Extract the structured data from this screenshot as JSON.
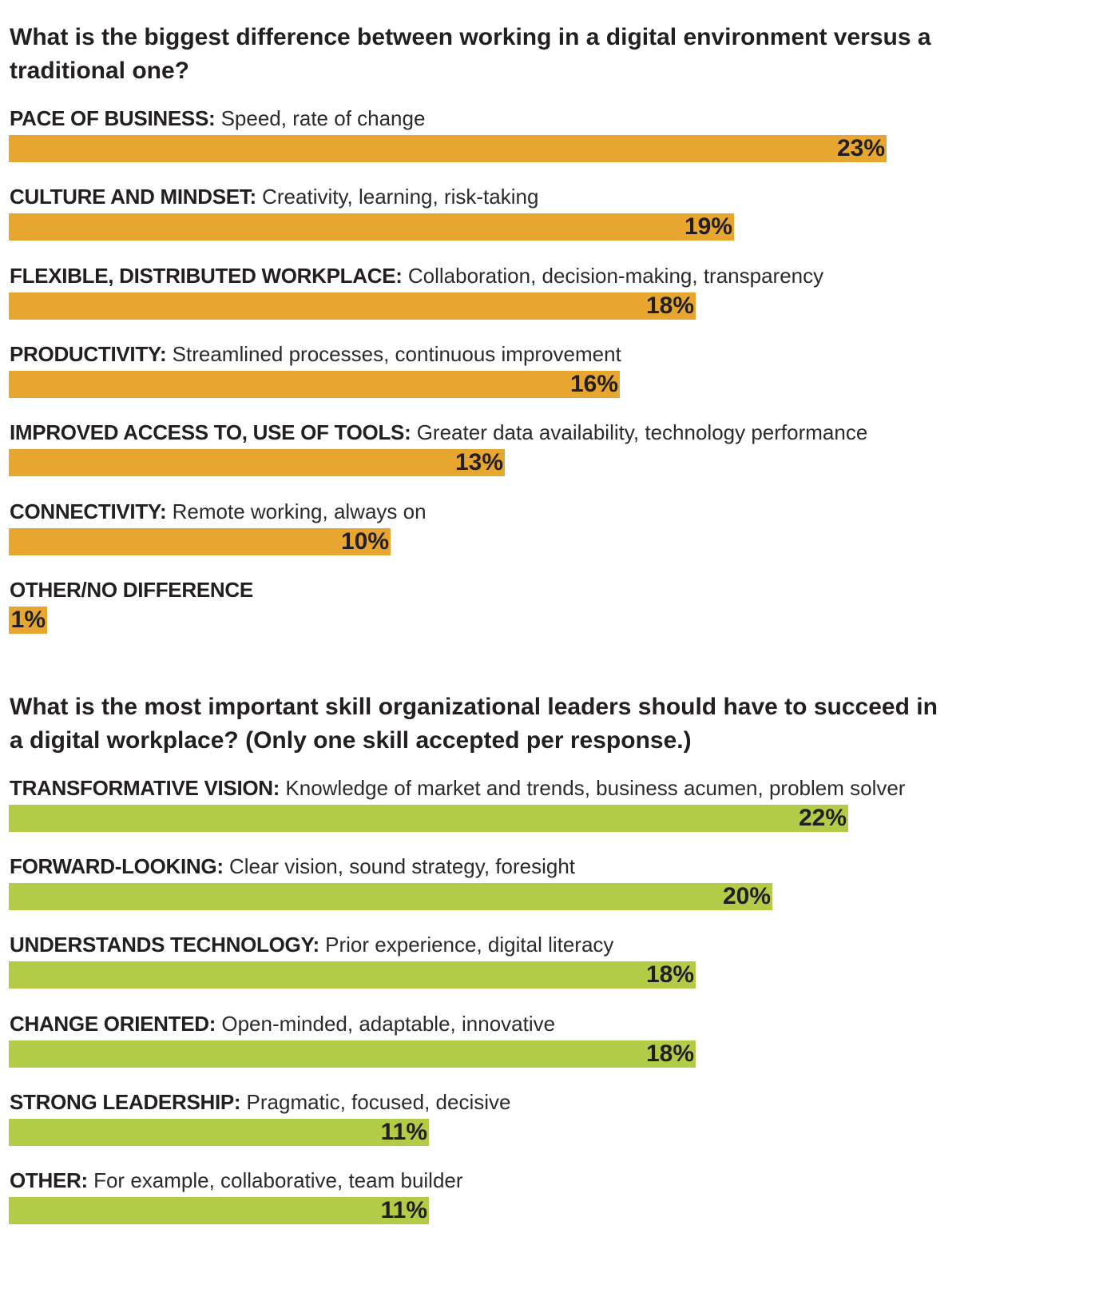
{
  "chart_data": [
    {
      "type": "bar",
      "orientation": "horizontal",
      "title": "What is the biggest difference between working in a digital environment versus a traditional one?",
      "color": "#e7a630",
      "unit": "%",
      "items": [
        {
          "category": "PACE OF BUSINESS:",
          "description": "Speed, rate of change",
          "value": 23,
          "label": "23%"
        },
        {
          "category": "CULTURE AND MINDSET:",
          "description": "Creativity, learning, risk-taking",
          "value": 19,
          "label": "19%"
        },
        {
          "category": "FLEXIBLE, DISTRIBUTED WORKPLACE:",
          "description": "Collaboration, decision-making, transparency",
          "value": 18,
          "label": "18%"
        },
        {
          "category": "PRODUCTIVITY:",
          "description": "Streamlined processes, continuous improvement",
          "value": 16,
          "label": "16%"
        },
        {
          "category": "IMPROVED ACCESS TO, USE OF TOOLS:",
          "description": "Greater data availability, technology performance",
          "value": 13,
          "label": "13%"
        },
        {
          "category": "CONNECTIVITY:",
          "description": "Remote working, always on",
          "value": 10,
          "label": "10%"
        },
        {
          "category": "OTHER/NO DIFFERENCE",
          "description": "",
          "value": 1,
          "label": "1%"
        }
      ]
    },
    {
      "type": "bar",
      "orientation": "horizontal",
      "title": "What is the most important skill organizational leaders should have to succeed in a digital workplace? (Only one skill accepted per response.)",
      "color": "#b2cc48",
      "unit": "%",
      "items": [
        {
          "category": "TRANSFORMATIVE VISION:",
          "description": "Knowledge of market and trends, business acumen, problem solver",
          "value": 22,
          "label": "22%"
        },
        {
          "category": "FORWARD-LOOKING:",
          "description": "Clear vision, sound strategy, foresight",
          "value": 20,
          "label": "20%"
        },
        {
          "category": "UNDERSTANDS TECHNOLOGY:",
          "description": "Prior experience, digital literacy",
          "value": 18,
          "label": "18%"
        },
        {
          "category": "CHANGE ORIENTED:",
          "description": "Open-minded, adaptable, innovative",
          "value": 18,
          "label": "18%"
        },
        {
          "category": "STRONG LEADERSHIP:",
          "description": "Pragmatic, focused, decisive",
          "value": 11,
          "label": "11%"
        },
        {
          "category": "OTHER:",
          "description": "For example, collaborative, team builder",
          "value": 11,
          "label": "11%"
        }
      ]
    }
  ]
}
